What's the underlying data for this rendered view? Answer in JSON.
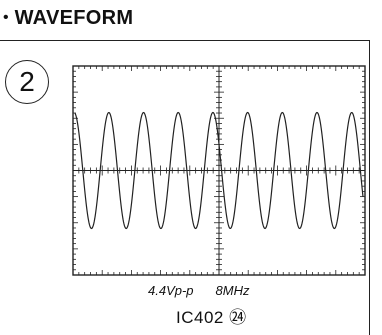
{
  "heading": {
    "bullet": "•",
    "title": "WAVEFORM"
  },
  "waveform": {
    "number": "2",
    "amplitude": "4.4Vp-p",
    "frequency": "8MHz",
    "probe_point": "IC402 ㉔",
    "cycles_visible": 8.3,
    "colors": {
      "trace": "#222222",
      "grid": "#222222",
      "background": "#ffffff"
    }
  }
}
